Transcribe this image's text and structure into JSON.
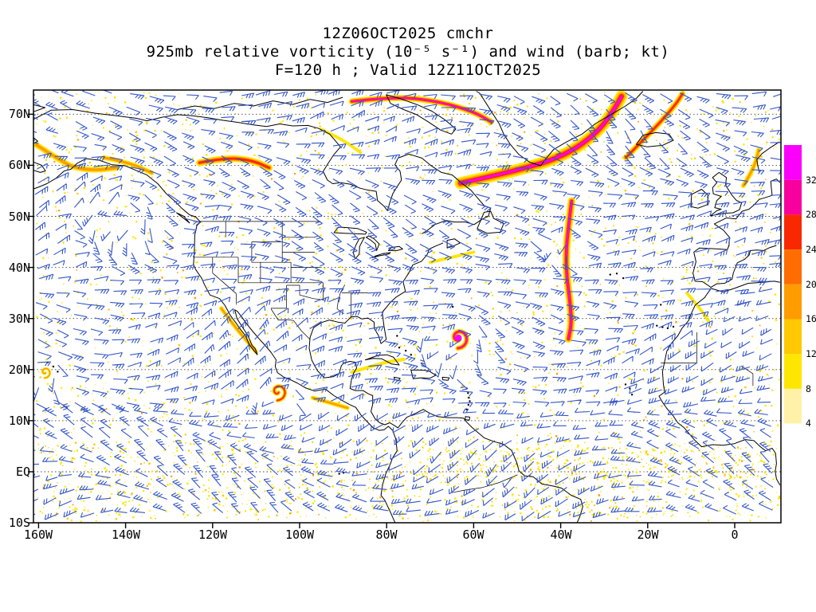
{
  "title": {
    "line1": "12Z06OCT2025 cmchr",
    "line2": "925mb relative vorticity (10⁻⁵ s⁻¹) and wind (barb; kt)",
    "line3": "F=120 h ; Valid 12Z11OCT2025"
  },
  "axes": {
    "lat_ticks": [
      "70N",
      "60N",
      "50N",
      "40N",
      "30N",
      "20N",
      "10N",
      "EQ",
      "10S"
    ],
    "lon_ticks": [
      "160W",
      "140W",
      "120W",
      "100W",
      "80W",
      "60W",
      "40W",
      "20W",
      "0"
    ]
  },
  "colorbar": {
    "labels": [
      "32",
      "28",
      "24",
      "20",
      "16",
      "12",
      "8",
      "4"
    ],
    "colors_top_to_bottom": [
      "#fb00fb",
      "#f8009e",
      "#fa2800",
      "#ff6c00",
      "#ff9c00",
      "#ffc800",
      "#ffe600",
      "#fff2a8",
      "#ffffff"
    ]
  },
  "wind": {
    "barb_color": "#3356c8",
    "units": "kt"
  },
  "map": {
    "coast_color": "#000000",
    "background": "#ffffff"
  },
  "chart_data": {
    "type": "heatmap",
    "title": "925mb relative vorticity (10⁻⁵ s⁻¹) and wind (barb; kt)",
    "init": "12Z06OCT2025",
    "model": "cmchr",
    "forecast_hour": 120,
    "valid": "12Z11OCT2025",
    "units": "10⁻⁵ s⁻¹",
    "levels": [
      4,
      8,
      12,
      16,
      20,
      24,
      28,
      32
    ],
    "overlay": "wind barbs (kt)",
    "lon_range": [
      -161.2,
      10.6
    ],
    "lat_range": [
      -10,
      74.7
    ],
    "lat_gridlines": [
      70,
      60,
      50,
      40,
      30,
      20,
      10,
      0
    ],
    "lat_ticks_deg": [
      70,
      60,
      50,
      40,
      30,
      20,
      10,
      0,
      -10
    ],
    "lon_ticks_deg": [
      -160,
      -140,
      -120,
      -100,
      -80,
      -60,
      -40,
      -20,
      0
    ],
    "features": [
      {
        "name": "se-greenland-band",
        "type": "streak",
        "intensity": "extreme",
        "width": 5,
        "points": [
          [
            -63,
            56.5
          ],
          [
            -55,
            58
          ],
          [
            -48,
            59.5
          ],
          [
            -42,
            61
          ],
          [
            -36,
            63.5
          ],
          [
            -31,
            67
          ],
          [
            -28,
            70.5
          ],
          [
            -26,
            73.5
          ]
        ]
      },
      {
        "name": "central-atlantic-shear-line",
        "type": "streak",
        "intensity": "extreme",
        "width": 3.2,
        "points": [
          [
            -37.5,
            53
          ],
          [
            -38.2,
            48
          ],
          [
            -38.8,
            43
          ],
          [
            -38.6,
            38
          ],
          [
            -37.8,
            33
          ],
          [
            -37.5,
            29
          ],
          [
            -38.2,
            26
          ]
        ]
      },
      {
        "name": "atlantic-hurricane",
        "type": "vortex",
        "intensity": "extreme",
        "lon": -63.5,
        "lat": 26.2,
        "size": 14
      },
      {
        "name": "east-pacific-tropical-cyclone",
        "type": "vortex",
        "intensity": "strong",
        "lon": -105,
        "lat": 15.7,
        "size": 12
      },
      {
        "name": "central-pacific-system",
        "type": "vortex",
        "intensity": "moderate",
        "lon": -158.5,
        "lat": 19.5,
        "size": 8
      },
      {
        "name": "gulf-of-alaska-streak",
        "type": "streak",
        "intensity": "moderate",
        "width": 3,
        "points": [
          [
            -160.5,
            64
          ],
          [
            -156,
            61.5
          ],
          [
            -152,
            59.5
          ],
          [
            -147,
            59
          ],
          [
            -142,
            59.5
          ]
        ]
      },
      {
        "name": "alaska-interior-streak",
        "type": "streak",
        "intensity": "moderate",
        "width": 2.5,
        "points": [
          [
            -145,
            61.5
          ],
          [
            -139,
            60.5
          ],
          [
            -134,
            58.5
          ]
        ]
      },
      {
        "name": "nw-canada-band",
        "type": "streak",
        "intensity": "strong",
        "width": 3.2,
        "points": [
          [
            -123,
            60.5
          ],
          [
            -117,
            61.5
          ],
          [
            -111,
            61
          ],
          [
            -107,
            59.5
          ]
        ]
      },
      {
        "name": "iceland-greenland-sea-streak",
        "type": "streak",
        "intensity": "strong",
        "width": 2.8,
        "points": [
          [
            -25,
            61.5
          ],
          [
            -21,
            65
          ],
          [
            -17,
            68.5
          ],
          [
            -13.5,
            72
          ],
          [
            -12,
            74
          ]
        ]
      },
      {
        "name": "norwegian-sea-streak",
        "type": "streak",
        "intensity": "moderate",
        "width": 2.5,
        "points": [
          [
            2,
            56
          ],
          [
            4.5,
            59.5
          ],
          [
            5.5,
            63
          ]
        ]
      },
      {
        "name": "arctic-islands-band",
        "type": "streak",
        "intensity": "extreme",
        "width": 2.6,
        "points": [
          [
            -88,
            72.5
          ],
          [
            -78,
            73.5
          ],
          [
            -68,
            72.5
          ],
          [
            -60,
            70.5
          ],
          [
            -56,
            68.5
          ]
        ]
      },
      {
        "name": "hudson-bay-streak",
        "type": "streak",
        "intensity": "weak",
        "width": 2,
        "points": [
          [
            -95,
            67
          ],
          [
            -90,
            65
          ],
          [
            -86,
            62.5
          ]
        ]
      },
      {
        "name": "baja-california-shear",
        "type": "streak",
        "intensity": "moderate",
        "width": 2.2,
        "points": [
          [
            -118,
            32
          ],
          [
            -115,
            28.5
          ],
          [
            -112,
            25.5
          ],
          [
            -110,
            23.5
          ]
        ]
      },
      {
        "name": "caribbean-streak",
        "type": "streak",
        "intensity": "weak",
        "width": 2.2,
        "points": [
          [
            -88,
            19.5
          ],
          [
            -84,
            20.5
          ],
          [
            -80,
            21.5
          ],
          [
            -76,
            22
          ]
        ]
      },
      {
        "name": "central-america-pacific-streak",
        "type": "streak",
        "intensity": "moderate",
        "width": 2.2,
        "points": [
          [
            -97,
            14.5
          ],
          [
            -93,
            13.5
          ],
          [
            -89,
            12.5
          ]
        ]
      },
      {
        "name": "new-england-offshore-streak",
        "type": "streak",
        "intensity": "weak",
        "width": 2,
        "points": [
          [
            -70,
            41
          ],
          [
            -65,
            42
          ],
          [
            -60,
            43
          ]
        ]
      },
      {
        "name": "morocco-coast-streak",
        "type": "streak",
        "intensity": "weak",
        "width": 2,
        "points": [
          [
            -11,
            35
          ],
          [
            -8,
            32
          ],
          [
            -6,
            29.5
          ]
        ]
      }
    ]
  }
}
